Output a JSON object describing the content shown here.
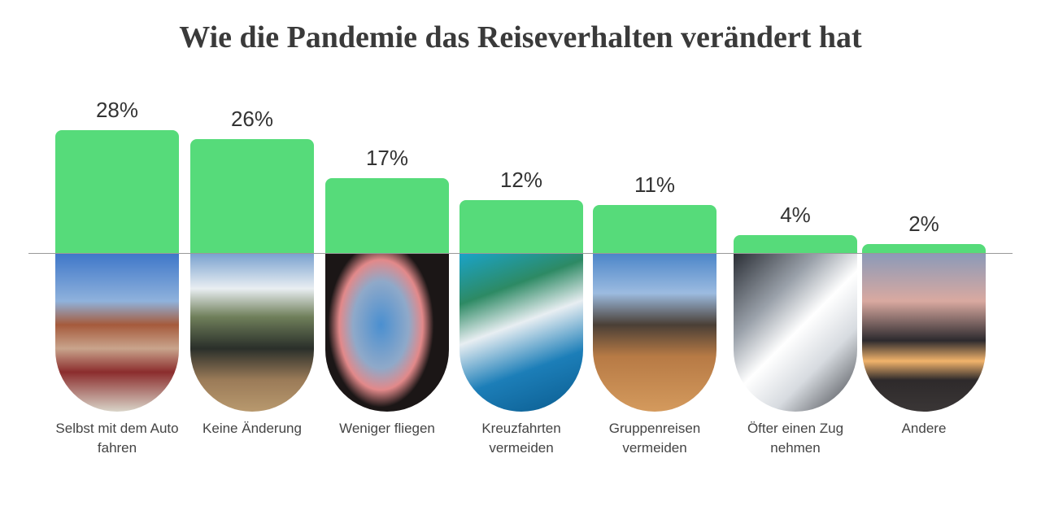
{
  "chart_data": {
    "type": "bar",
    "title": "Wie die Pandemie das Reiseverhalten verändert hat",
    "categories": [
      "Selbst mit dem Auto fahren",
      "Keine Änderung",
      "Weniger fliegen",
      "Kreuzfahrten vermeiden",
      "Gruppenreisen vermeiden",
      "Öfter einen Zug nehmen",
      "Andere"
    ],
    "values": [
      28,
      26,
      17,
      12,
      11,
      4,
      2
    ],
    "value_labels": [
      "28%",
      "26%",
      "17%",
      "12%",
      "11%",
      "4%",
      "2%"
    ],
    "color": "#56db7a"
  }
}
